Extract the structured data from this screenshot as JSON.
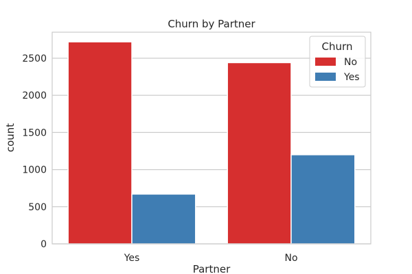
{
  "chart_data": {
    "type": "bar",
    "title": "Churn by Partner",
    "xlabel": "Partner",
    "ylabel": "count",
    "categories": [
      "Yes",
      "No"
    ],
    "series": [
      {
        "name": "No",
        "values": [
          2720,
          2440
        ],
        "color": "#d62f2f"
      },
      {
        "name": "Yes",
        "values": [
          670,
          1200
        ],
        "color": "#3f7db3"
      }
    ],
    "ylim": [
      0,
      2850
    ],
    "yticks": [
      0,
      500,
      1000,
      1500,
      2000,
      2500
    ],
    "grid": true,
    "legend": {
      "title": "Churn",
      "placement": "top-right"
    }
  }
}
